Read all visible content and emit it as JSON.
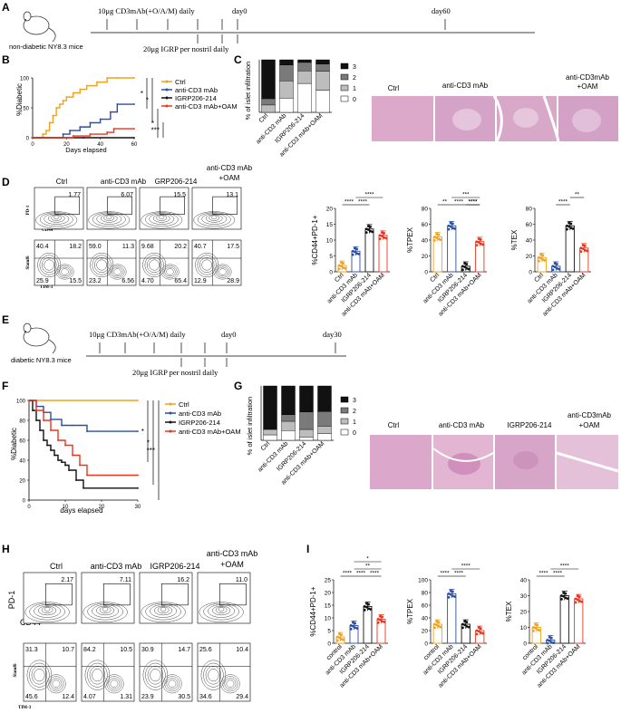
{
  "panelA": {
    "letter": "A",
    "treatment": "10μg CD3mAb(+O/A/M) daily",
    "day0": "day0",
    "dayEnd": "day60",
    "igrp": "20μg IGRP per nostril daily",
    "mice": "non-diabetic NY8.3 mice"
  },
  "panelE": {
    "letter": "E",
    "treatment": "10μg CD3mAb(+O/A/M) daily",
    "day0": "day0",
    "dayEnd": "day30",
    "igrp": "20μg IGRP per nostril daily",
    "mice": "diabetic NY8.3 mice"
  },
  "colors": {
    "ctrl": "#f2a11b",
    "cd3": "#2b4ea2",
    "igrp": "#111111",
    "oam": "#e8361f",
    "stack3": "#111111",
    "stack2": "#7a7a7a",
    "stack1": "#bdbdbd",
    "stack0": "#ffffff",
    "histo": "#d9a7c9"
  },
  "panelB": {
    "letter": "B",
    "ylabel": "%Diabetic",
    "xlabel": "Days elapsed",
    "sig": [
      "*",
      "*",
      "*",
      "***"
    ],
    "chart_data": {
      "type": "line",
      "xlim": [
        0,
        60
      ],
      "ylim": [
        0,
        100
      ],
      "xticks": [
        "0",
        "20",
        "40",
        "60"
      ],
      "yticks": [
        "0",
        "50",
        "100"
      ],
      "series": [
        {
          "name": "Ctrl",
          "x": [
            0,
            6,
            8,
            10,
            12,
            14,
            16,
            18,
            20,
            24,
            28,
            32,
            38,
            44,
            50,
            60
          ],
          "y": [
            0,
            6,
            12,
            25,
            37,
            50,
            56,
            62,
            68,
            75,
            81,
            87,
            93,
            100,
            100,
            100
          ]
        },
        {
          "name": "anti-CD3 mAb",
          "x": [
            0,
            18,
            22,
            28,
            34,
            40,
            46,
            50,
            60
          ],
          "y": [
            0,
            6,
            12,
            18,
            25,
            31,
            43,
            56,
            56
          ]
        },
        {
          "name": "IGRP206-214",
          "x": [
            0,
            30,
            60
          ],
          "y": [
            0,
            0,
            0
          ]
        },
        {
          "name": "anti-CD3 mAb+OAM",
          "x": [
            0,
            24,
            34,
            44,
            48,
            60
          ],
          "y": [
            0,
            3,
            6,
            9,
            15,
            15
          ]
        }
      ]
    }
  },
  "panelC": {
    "letter": "C",
    "ylabel": "% of islet infiltration",
    "legend": [
      "3",
      "2",
      "1",
      "0"
    ],
    "histoLabels": [
      "Ctrl",
      "anti-CD3 mAb",
      "anti-CD3mAb\n+OAM"
    ],
    "histoLabel1": "Ctrl",
    "histoLabel2": "anti-CD3 mAb",
    "histoLabel3a": "anti-CD3mAb",
    "histoLabel3b": "+OAM",
    "chart_data": {
      "type": "bar",
      "stacked": true,
      "categories": [
        "Ctrl",
        "anti-CD3 mAb",
        "IGRP206-214",
        "anti-CD3 mAb+OAM"
      ],
      "ylim": [
        0,
        100
      ],
      "series": [
        {
          "name": "0",
          "values": [
            0,
            27,
            55,
            42
          ]
        },
        {
          "name": "1",
          "values": [
            14,
            33,
            24,
            36
          ]
        },
        {
          "name": "2",
          "values": [
            12,
            30,
            16,
            14
          ]
        },
        {
          "name": "3",
          "values": [
            74,
            10,
            5,
            8
          ]
        }
      ]
    }
  },
  "panelD": {
    "letter": "D",
    "cols": [
      "Ctrl",
      "anti-CD3 mAb",
      "GRP206-214",
      "anti-CD3 mAb\n+OAM"
    ],
    "colLabel4a": "anti-CD3 mAb",
    "colLabel4b": "+OAM",
    "top": [
      "1.77",
      "6.07",
      "15.5",
      "13.1"
    ],
    "topY": "PD-1",
    "topX": "CD44",
    "bottomY": "Slamf6",
    "bottomX": "TIM-3",
    "quad": [
      [
        "40.4",
        "18.2",
        "25.9",
        "15.5"
      ],
      [
        "59.0",
        "11.3",
        "23.2",
        "6.56"
      ],
      [
        "9.68",
        "20.2",
        "4.70",
        "65.4"
      ],
      [
        "40.7",
        "17.5",
        "12.9",
        "28.9"
      ]
    ]
  },
  "panelDcharts": {
    "chart_data": [
      {
        "type": "bar",
        "ylabel": "%CD44+PD-1+",
        "categories": [
          "Ctrl",
          "anti-CD3 mAb",
          "IGRP206-214",
          "anti-CD3 mAb+OAM"
        ],
        "values": [
          2,
          6.5,
          13.5,
          11.5
        ],
        "ylim": [
          0,
          20
        ],
        "yticks": [
          "0",
          "5",
          "10",
          "15",
          "20"
        ],
        "sig": [
          "****",
          "****",
          "****"
        ]
      },
      {
        "type": "bar",
        "ylabel": "%TPEX",
        "categories": [
          "Ctrl",
          "anti-CD3 mAb",
          "IGRP206-214",
          "anti-CD3 mAb+OAM"
        ],
        "values": [
          44,
          58,
          7,
          38
        ],
        "ylim": [
          0,
          80
        ],
        "yticks": [
          "0",
          "20",
          "40",
          "60",
          "80"
        ],
        "sig": [
          "**",
          "****",
          "****",
          "***",
          "****"
        ]
      },
      {
        "type": "bar",
        "ylabel": "%TEX",
        "categories": [
          "Ctrl",
          "anti-CD3 mAb",
          "IGRP206-214",
          "anti-CD3 mAb+OAM"
        ],
        "values": [
          18,
          7,
          58,
          30
        ],
        "ylim": [
          0,
          80
        ],
        "yticks": [
          "0",
          "20",
          "40",
          "60",
          "80"
        ],
        "sig": [
          "****",
          "**"
        ]
      }
    ]
  },
  "panelF": {
    "letter": "F",
    "ylabel": "%Diabetic",
    "xlabel": "days elapsed",
    "sig": [
      "*",
      "*",
      "***"
    ],
    "chart_data": {
      "type": "line",
      "xlim": [
        0,
        30
      ],
      "ylim": [
        0,
        100
      ],
      "xticks": [
        "0",
        "10",
        "20",
        "30"
      ],
      "yticks": [
        "0",
        "20",
        "40",
        "60",
        "80",
        "100"
      ],
      "series": [
        {
          "name": "Ctrl",
          "x": [
            0,
            30
          ],
          "y": [
            100,
            100
          ]
        },
        {
          "name": "anti-CD3 mAb",
          "x": [
            0,
            2,
            4,
            6,
            9,
            12,
            16,
            30
          ],
          "y": [
            100,
            94,
            88,
            81,
            75,
            75,
            69,
            69
          ]
        },
        {
          "name": "IGRP206-214",
          "x": [
            0,
            1,
            2,
            3,
            4,
            5,
            6,
            7,
            8,
            9,
            10,
            11,
            13,
            15,
            30
          ],
          "y": [
            100,
            90,
            80,
            70,
            60,
            55,
            50,
            45,
            40,
            38,
            35,
            30,
            20,
            12,
            12
          ]
        },
        {
          "name": "anti-CD3 mAb+OAM",
          "x": [
            0,
            2,
            4,
            6,
            8,
            10,
            12,
            14,
            16,
            30
          ],
          "y": [
            100,
            90,
            80,
            70,
            60,
            55,
            45,
            35,
            25,
            25
          ]
        }
      ]
    }
  },
  "panelG": {
    "letter": "G",
    "ylabel": "% of islet infiltration",
    "legend": [
      "3",
      "2",
      "1",
      "0"
    ],
    "histo1": "Ctrl",
    "histo2": "anti-CD3 mAb",
    "histo3": "IGRP206-214",
    "histo4a": "anti-CD3mAb",
    "histo4b": "+OAM",
    "chart_data": {
      "type": "bar",
      "stacked": true,
      "categories": [
        "Ctrl",
        "anti-CD3 mAb",
        "IGRP206-214",
        "anti-CD3 mAb+OAM"
      ],
      "ylim": [
        0,
        100
      ],
      "series": [
        {
          "name": "0",
          "values": [
            10,
            18,
            6,
            12
          ]
        },
        {
          "name": "1",
          "values": [
            10,
            17,
            14,
            14
          ]
        },
        {
          "name": "2",
          "values": [
            0,
            12,
            32,
            27
          ]
        },
        {
          "name": "3",
          "values": [
            80,
            53,
            48,
            47
          ]
        }
      ]
    }
  },
  "panelH": {
    "letter": "H",
    "col1": "Ctrl",
    "col2": "anti-CD3 mAb",
    "col3": "IGRP206-214",
    "col4a": "anti-CD3 mAb",
    "col4b": "+OAM",
    "top": [
      "2.17",
      "7.11",
      "16.2",
      "11.0"
    ],
    "topY": "PD-1",
    "topX": "CD44",
    "bottomY": "Slamf6",
    "bottomX": "TIM-3",
    "quad": [
      [
        "31.3",
        "10.7",
        "45.6",
        "12.4"
      ],
      [
        "84.2",
        "10.5",
        "4.07",
        "1.31"
      ],
      [
        "30.9",
        "14.7",
        "23.9",
        "30.5"
      ],
      [
        "25.6",
        "10.4",
        "34.6",
        "29.4"
      ]
    ]
  },
  "panelI": {
    "letter": "I",
    "chart_data": [
      {
        "type": "bar",
        "ylabel": "%CD44+PD-1+",
        "categories": [
          "control",
          "anti-CD3 mAb",
          "IGRP206-214",
          "anti-CD3 mAb+OAM"
        ],
        "values": [
          2.5,
          7,
          14.5,
          9.5
        ],
        "ylim": [
          0,
          25
        ],
        "yticks": [
          "0",
          "5",
          "10",
          "15",
          "20",
          "25"
        ],
        "sig": [
          "****",
          "****",
          "****",
          "**",
          "*"
        ]
      },
      {
        "type": "bar",
        "ylabel": "%TPEX",
        "categories": [
          "control",
          "anti-CD3 mAb",
          "IGRP206-214",
          "anti-CD3 mAb+OAM"
        ],
        "values": [
          30,
          78,
          30,
          20
        ],
        "ylim": [
          0,
          100
        ],
        "yticks": [
          "0",
          "20",
          "40",
          "60",
          "80",
          "100"
        ],
        "sig": [
          "****",
          "****",
          "****"
        ]
      },
      {
        "type": "bar",
        "ylabel": "%TEX",
        "categories": [
          "control",
          "anti-CD3 mAb",
          "IGRP206-214",
          "anti-CD3 mAb+OAM"
        ],
        "values": [
          10,
          2,
          30,
          28
        ],
        "ylim": [
          0,
          40
        ],
        "yticks": [
          "0",
          "10",
          "20",
          "30",
          "40"
        ],
        "sig": [
          "****",
          "****",
          "****"
        ]
      }
    ]
  }
}
